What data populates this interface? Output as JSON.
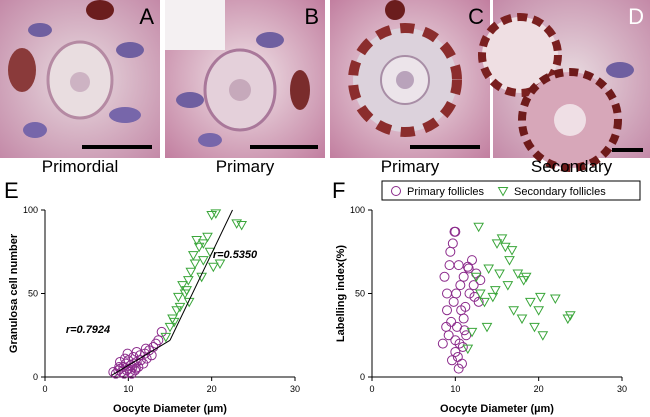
{
  "panels": [
    {
      "letter": "A",
      "caption": "Primordial"
    },
    {
      "letter": "B",
      "caption": "Primary"
    },
    {
      "letter": "C",
      "caption": "Primary"
    },
    {
      "letter": "D",
      "caption": "Secondary"
    }
  ],
  "chart_data": [
    {
      "type": "scatter",
      "panel": "E",
      "xlabel": "Oocyte Diameter (µm)",
      "ylabel": "Granulosa cell number",
      "xlim": [
        0,
        30
      ],
      "ylim": [
        0,
        100
      ],
      "xticks": [
        0,
        10,
        20,
        30
      ],
      "yticks": [
        0,
        50,
        100
      ],
      "annotations": [
        "r=0.7924",
        "r=0.5350"
      ],
      "series": [
        {
          "color": "#8b2a8b",
          "marker": "circle",
          "x": [
            8.2,
            8.5,
            8.8,
            9,
            9.2,
            9.4,
            9.5,
            9.7,
            9.8,
            10,
            10,
            10.2,
            10.3,
            10.5,
            10.6,
            10.8,
            11,
            11,
            11.2,
            11.5,
            11.8,
            12,
            12.2,
            12.5,
            12.8,
            13,
            13.3,
            13.6,
            14,
            9,
            9.6,
            10.4,
            10.9,
            11.4,
            12.1,
            8.9,
            9.9,
            10.7
          ],
          "values": [
            3,
            2,
            4,
            5,
            3,
            6,
            2,
            8,
            4,
            5,
            10,
            3,
            7,
            6,
            12,
            4,
            9,
            15,
            6,
            10,
            8,
            14,
            11,
            16,
            13,
            18,
            20,
            22,
            27,
            9,
            11,
            2,
            5,
            13,
            17,
            6,
            14,
            8
          ]
        },
        {
          "color": "#3aa63a",
          "marker": "triangle-down",
          "x": [
            14.5,
            15,
            15.3,
            15.8,
            16,
            16.2,
            16.5,
            17,
            17.2,
            17.5,
            17.8,
            18,
            18.2,
            18.5,
            19,
            19,
            19.5,
            20,
            20.5,
            21,
            23,
            23.6,
            15.5,
            18.8,
            17.3,
            19.8,
            16.8,
            20.2
          ],
          "values": [
            24,
            30,
            35,
            40,
            48,
            42,
            55,
            52,
            58,
            63,
            73,
            68,
            82,
            78,
            80,
            70,
            84,
            97,
            98,
            68,
            92,
            91,
            33,
            60,
            45,
            75,
            50,
            66
          ]
        }
      ],
      "fit_lines": [
        {
          "x": [
            8,
            15
          ],
          "values": [
            1,
            22
          ]
        },
        {
          "x": [
            15,
            22.5
          ],
          "values": [
            22,
            100
          ]
        }
      ]
    },
    {
      "type": "scatter",
      "panel": "F",
      "xlabel": "Oocyte Diameter (µm)",
      "ylabel": "Labelling index(%)",
      "xlim": [
        0,
        30
      ],
      "ylim": [
        0,
        100
      ],
      "xticks": [
        0,
        10,
        20,
        30
      ],
      "yticks": [
        0,
        50,
        100
      ],
      "legend": "top",
      "series": [
        {
          "name": "Primary follicles",
          "color": "#8b2a8b",
          "marker": "circle",
          "x": [
            8.5,
            8.7,
            9,
            9,
            9.2,
            9.3,
            9.5,
            9.6,
            9.8,
            9.9,
            10,
            10,
            10.1,
            10.2,
            10.4,
            10.5,
            10.6,
            10.8,
            11,
            11,
            11.2,
            11.3,
            11.5,
            11.7,
            12,
            12.2,
            12.5,
            12.8,
            13,
            9.4,
            10.3,
            10.7,
            11.1,
            9.7,
            10.9,
            11.6,
            12.3,
            8.9,
            10,
            10.4
          ],
          "values": [
            20,
            60,
            40,
            50,
            25,
            67,
            33,
            10,
            45,
            87,
            87,
            15,
            50,
            30,
            67,
            20,
            55,
            8,
            35,
            60,
            42,
            25,
            66,
            50,
            70,
            55,
            62,
            45,
            58,
            75,
            12,
            40,
            28,
            80,
            18,
            65,
            48,
            30,
            22,
            5
          ]
        },
        {
          "name": "Secondary follicles",
          "color": "#3aa63a",
          "marker": "triangle-down",
          "x": [
            11.5,
            12,
            12.5,
            13,
            13.5,
            14,
            14.5,
            15,
            15.3,
            15.6,
            16,
            16.3,
            16.8,
            17,
            17.5,
            18,
            18.5,
            19,
            19.5,
            20,
            20.5,
            22,
            23.5,
            23.8,
            12.8,
            14.8,
            16.5,
            18.2,
            20.2,
            13.8
          ],
          "values": [
            17,
            27,
            60,
            50,
            45,
            65,
            48,
            80,
            62,
            83,
            78,
            55,
            76,
            40,
            62,
            35,
            60,
            45,
            30,
            40,
            25,
            47,
            35,
            37,
            90,
            52,
            70,
            58,
            48,
            30
          ]
        }
      ]
    }
  ]
}
